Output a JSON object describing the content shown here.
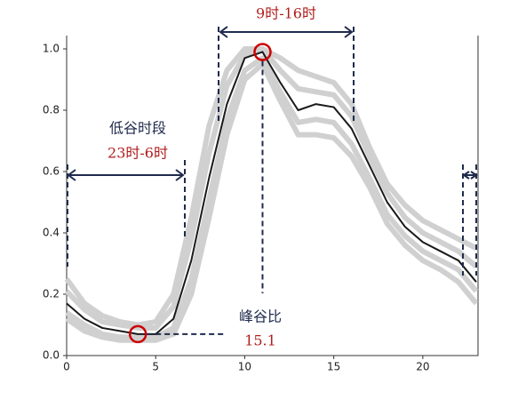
{
  "chart_data": {
    "type": "line",
    "x": [
      0,
      1,
      2,
      3,
      4,
      5,
      6,
      7,
      8,
      9,
      10,
      11,
      12,
      13,
      14,
      15,
      16,
      17,
      18,
      19,
      20,
      21,
      22,
      23
    ],
    "series": [
      {
        "color": "#d0d0d0",
        "values": [
          0.25,
          0.17,
          0.13,
          0.11,
          0.1,
          0.11,
          0.2,
          0.45,
          0.75,
          0.93,
          1.0,
          1.0,
          0.97,
          0.93,
          0.91,
          0.89,
          0.82,
          0.68,
          0.56,
          0.49,
          0.44,
          0.41,
          0.38,
          0.35
        ]
      },
      {
        "color": "#d0d0d0",
        "values": [
          0.21,
          0.15,
          0.11,
          0.1,
          0.09,
          0.09,
          0.16,
          0.38,
          0.66,
          0.88,
          0.98,
          1.0,
          0.93,
          0.87,
          0.86,
          0.85,
          0.78,
          0.65,
          0.53,
          0.45,
          0.4,
          0.37,
          0.34,
          0.29
        ]
      },
      {
        "color": "#d0d0d0",
        "values": [
          0.14,
          0.1,
          0.07,
          0.06,
          0.06,
          0.06,
          0.09,
          0.25,
          0.51,
          0.77,
          0.93,
          0.97,
          0.86,
          0.76,
          0.77,
          0.76,
          0.69,
          0.58,
          0.46,
          0.39,
          0.34,
          0.31,
          0.28,
          0.21
        ]
      },
      {
        "color": "#d0d0d0",
        "values": [
          0.12,
          0.08,
          0.06,
          0.05,
          0.05,
          0.05,
          0.07,
          0.2,
          0.45,
          0.72,
          0.9,
          0.95,
          0.83,
          0.72,
          0.72,
          0.71,
          0.65,
          0.55,
          0.43,
          0.36,
          0.31,
          0.28,
          0.24,
          0.17
        ]
      },
      {
        "color": "#1a1a1a",
        "values": [
          0.17,
          0.12,
          0.09,
          0.08,
          0.07,
          0.07,
          0.12,
          0.31,
          0.58,
          0.82,
          0.97,
          0.99,
          0.89,
          0.8,
          0.82,
          0.81,
          0.74,
          0.62,
          0.5,
          0.42,
          0.37,
          0.34,
          0.31,
          0.24
        ]
      }
    ],
    "xlim": [
      0,
      23
    ],
    "ylim": [
      0,
      1.0
    ],
    "xticks": [
      0,
      5,
      10,
      15,
      20
    ],
    "yticks": [
      {
        "value": 0,
        "label": "0.0"
      },
      0.2,
      0.4,
      0.6,
      0.8,
      {
        "value": 1,
        "label": "1.0"
      }
    ],
    "annotations": {
      "peak_hours": "9时-16时",
      "valley_title": "低谷时段",
      "valley_hours": "23时-6时",
      "ratio_title": "峰谷比",
      "ratio": 15.1
    }
  }
}
